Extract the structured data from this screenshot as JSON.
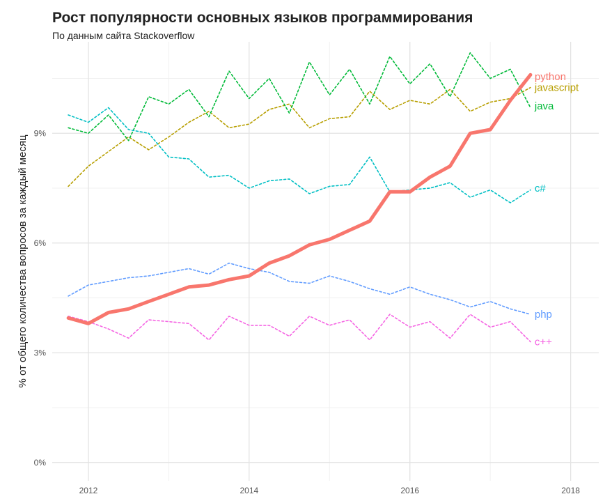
{
  "chart_data": {
    "type": "line",
    "title": "Рост популярности основных языков программирования",
    "subtitle": "По данным сайта Stackoverflow",
    "xlabel": "",
    "ylabel": "% от общего количества вопросов за каждый месяц",
    "xlim": [
      2011.55,
      2018.35
    ],
    "ylim": [
      -0.5,
      11.5
    ],
    "x_ticks": [
      2012,
      2014,
      2016,
      2018
    ],
    "x_tick_labels": [
      "2012",
      "2014",
      "2016",
      "2018"
    ],
    "y_ticks": [
      0,
      3,
      6,
      9
    ],
    "y_tick_labels": [
      "0%",
      "3%",
      "6%",
      "9%"
    ],
    "grid": true,
    "legend": "direct labels at line ends",
    "series": [
      {
        "name": "python",
        "color": "#F8766D",
        "style": "solid",
        "x": [
          2011.75,
          2012,
          2012.25,
          2012.5,
          2012.75,
          2013,
          2013.25,
          2013.5,
          2013.75,
          2014,
          2014.25,
          2014.5,
          2014.75,
          2015,
          2015.25,
          2015.5,
          2015.75,
          2016,
          2016.25,
          2016.5,
          2016.75,
          2017,
          2017.25,
          2017.5
        ],
        "values": [
          3.95,
          3.8,
          4.1,
          4.2,
          4.4,
          4.6,
          4.8,
          4.85,
          5.0,
          5.1,
          5.45,
          5.65,
          5.95,
          6.1,
          6.35,
          6.6,
          7.4,
          7.4,
          7.8,
          8.1,
          9.0,
          9.1,
          9.9,
          10.6
        ]
      },
      {
        "name": "javascript",
        "color": "#B79F00",
        "style": "dashed",
        "x": [
          2011.75,
          2012,
          2012.25,
          2012.5,
          2012.75,
          2013,
          2013.25,
          2013.5,
          2013.75,
          2014,
          2014.25,
          2014.5,
          2014.75,
          2015,
          2015.25,
          2015.5,
          2015.75,
          2016,
          2016.25,
          2016.5,
          2016.75,
          2017,
          2017.25,
          2017.5
        ],
        "values": [
          7.55,
          8.1,
          8.5,
          8.9,
          8.55,
          8.9,
          9.3,
          9.6,
          9.15,
          9.25,
          9.65,
          9.8,
          9.15,
          9.4,
          9.45,
          10.15,
          9.65,
          9.9,
          9.8,
          10.2,
          9.6,
          9.85,
          9.95,
          10.25
        ]
      },
      {
        "name": "java",
        "color": "#00BA38",
        "style": "dashed",
        "x": [
          2011.75,
          2012,
          2012.25,
          2012.5,
          2012.75,
          2013,
          2013.25,
          2013.5,
          2013.75,
          2014,
          2014.25,
          2014.5,
          2014.75,
          2015,
          2015.25,
          2015.5,
          2015.75,
          2016,
          2016.25,
          2016.5,
          2016.75,
          2017,
          2017.25,
          2017.5
        ],
        "values": [
          9.15,
          9.0,
          9.5,
          8.8,
          10.0,
          9.8,
          10.2,
          9.45,
          10.7,
          9.95,
          10.5,
          9.55,
          10.95,
          10.05,
          10.75,
          9.8,
          11.1,
          10.35,
          10.9,
          10.0,
          11.2,
          10.5,
          10.75,
          9.7
        ]
      },
      {
        "name": "c#",
        "color": "#00BFC4",
        "style": "dashed",
        "x": [
          2011.75,
          2012,
          2012.25,
          2012.5,
          2012.75,
          2013,
          2013.25,
          2013.5,
          2013.75,
          2014,
          2014.25,
          2014.5,
          2014.75,
          2015,
          2015.25,
          2015.5,
          2015.75,
          2016,
          2016.25,
          2016.5,
          2016.75,
          2017,
          2017.25,
          2017.5
        ],
        "values": [
          9.5,
          9.3,
          9.7,
          9.1,
          9.0,
          8.35,
          8.3,
          7.8,
          7.85,
          7.5,
          7.7,
          7.75,
          7.35,
          7.55,
          7.6,
          8.35,
          7.4,
          7.45,
          7.5,
          7.65,
          7.25,
          7.45,
          7.1,
          7.45
        ]
      },
      {
        "name": "php",
        "color": "#619CFF",
        "style": "dashed",
        "x": [
          2011.75,
          2012,
          2012.25,
          2012.5,
          2012.75,
          2013,
          2013.25,
          2013.5,
          2013.75,
          2014,
          2014.25,
          2014.5,
          2014.75,
          2015,
          2015.25,
          2015.5,
          2015.75,
          2016,
          2016.25,
          2016.5,
          2016.75,
          2017,
          2017.25,
          2017.5
        ],
        "values": [
          4.55,
          4.85,
          4.95,
          5.05,
          5.1,
          5.2,
          5.3,
          5.15,
          5.45,
          5.3,
          5.2,
          4.95,
          4.9,
          5.1,
          4.95,
          4.75,
          4.6,
          4.8,
          4.6,
          4.45,
          4.25,
          4.4,
          4.2,
          4.05
        ]
      },
      {
        "name": "c++",
        "color": "#F564E3",
        "style": "dashed",
        "x": [
          2011.75,
          2012,
          2012.25,
          2012.5,
          2012.75,
          2013,
          2013.25,
          2013.5,
          2013.75,
          2014,
          2014.25,
          2014.5,
          2014.75,
          2015,
          2015.25,
          2015.5,
          2015.75,
          2016,
          2016.25,
          2016.5,
          2016.75,
          2017,
          2017.25,
          2017.5
        ],
        "values": [
          4.0,
          3.85,
          3.65,
          3.4,
          3.9,
          3.85,
          3.8,
          3.35,
          4.0,
          3.75,
          3.75,
          3.45,
          4.0,
          3.75,
          3.9,
          3.35,
          4.05,
          3.7,
          3.85,
          3.4,
          4.05,
          3.7,
          3.85,
          3.3
        ]
      }
    ]
  }
}
